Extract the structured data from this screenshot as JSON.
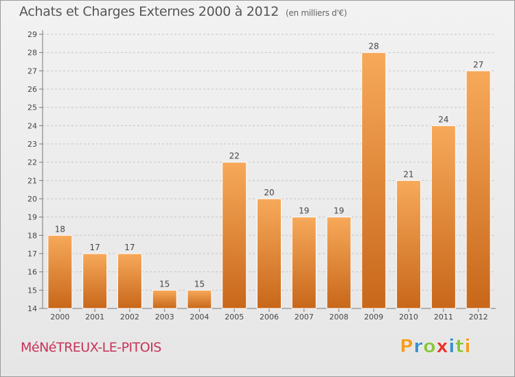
{
  "header": {
    "title": "Achats et Charges Externes 2000 à 2012",
    "unit": "(en milliers d'€)"
  },
  "footer": {
    "town": "MéNéTREUX-LE-PITOIS",
    "logo": "Proxiti",
    "logo_colors": [
      "#f39c1f",
      "#3a8fd0",
      "#8bc53f",
      "#e6332a",
      "#3a8fd0",
      "#8bc53f",
      "#f39c1f"
    ]
  },
  "colors": {
    "bar_top": "#f7a95a",
    "bar_bottom": "#c8671a",
    "title": "#555555",
    "town": "#c8325a"
  },
  "chart_data": {
    "type": "bar",
    "title": "Achats et Charges Externes 2000 à 2012",
    "subtitle": "(en milliers d'€)",
    "categories": [
      "2000",
      "2001",
      "2002",
      "2003",
      "2004",
      "2005",
      "2006",
      "2007",
      "2008",
      "2009",
      "2010",
      "2011",
      "2012"
    ],
    "values": [
      18,
      17,
      17,
      15,
      15,
      22,
      20,
      19,
      19,
      28,
      21,
      24,
      27
    ],
    "ylim": [
      14,
      29
    ],
    "yticks": [
      14,
      15,
      16,
      17,
      18,
      19,
      20,
      21,
      22,
      23,
      24,
      25,
      26,
      27,
      28,
      29
    ],
    "grid": "horizontal dashed",
    "data_labels": true
  }
}
